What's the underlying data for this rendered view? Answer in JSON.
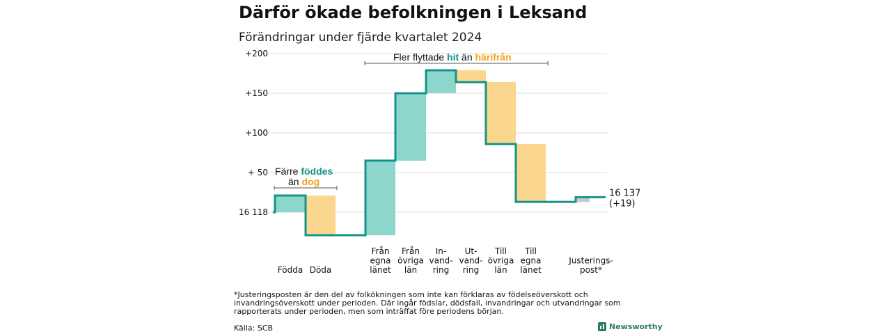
{
  "title": "Därför ökade befolkningen i Leksand",
  "subtitle": "Förändringar under fjärde kvartalet 2024",
  "annotations": {
    "births_deaths": {
      "line1_prefix": "Färre ",
      "line1_highlight": "föddes",
      "line2_prefix": "än ",
      "line2_highlight": "dog"
    },
    "migration": {
      "prefix": "Fler flyttade ",
      "hit": "hit",
      "middle": " än ",
      "harifran": "härifrån"
    }
  },
  "footnote": "*Justeringsposten är den del av folkökningen som inte kan förklaras av födelseöverskott och invandringsöverskott under perioden. Där ingår födslar, dödsfall, invandringar och utvandringar som rapporterats under perioden, men som inträffat före periodens början.",
  "source": "Källa: SCB",
  "brand": "Newsworthy",
  "colors": {
    "increase": "#8dd6cc",
    "decrease": "#fbd68e",
    "adjustment": "#c8c8c8",
    "line": "#12948a",
    "grid": "#dddddd"
  },
  "chart_data": {
    "type": "bar",
    "subtype": "waterfall",
    "start_label": "16 118",
    "end_label": "16 137",
    "end_change_label": "(+19)",
    "start_value": 16118,
    "end_value": 16137,
    "y_tick_labels": [
      "+200",
      "+150",
      "+100",
      "+ 50",
      "16 118"
    ],
    "y_ticks_relative": [
      200,
      150,
      100,
      50,
      0
    ],
    "ylim_relative": [
      -35,
      210
    ],
    "categories": [
      {
        "label": [
          "Födda"
        ],
        "change": 21,
        "kind": "increase"
      },
      {
        "label": [
          "Döda"
        ],
        "change": -50,
        "kind": "decrease"
      },
      {
        "label": [
          "Från",
          "egna",
          "länet"
        ],
        "change": 94,
        "kind": "increase"
      },
      {
        "label": [
          "Från",
          "övriga",
          "län"
        ],
        "change": 85,
        "kind": "increase"
      },
      {
        "label": [
          "In-",
          "vand-",
          "ring"
        ],
        "change": 29,
        "kind": "increase"
      },
      {
        "label": [
          "Ut-",
          "vand-",
          "ring"
        ],
        "change": -15,
        "kind": "decrease"
      },
      {
        "label": [
          "Till",
          "övriga",
          "län"
        ],
        "change": -78,
        "kind": "decrease"
      },
      {
        "label": [
          "Till",
          "egna",
          "länet"
        ],
        "change": -73,
        "kind": "decrease"
      },
      {
        "label": [
          "Justerings-",
          "post*"
        ],
        "change": 6,
        "kind": "adjustment"
      }
    ]
  }
}
